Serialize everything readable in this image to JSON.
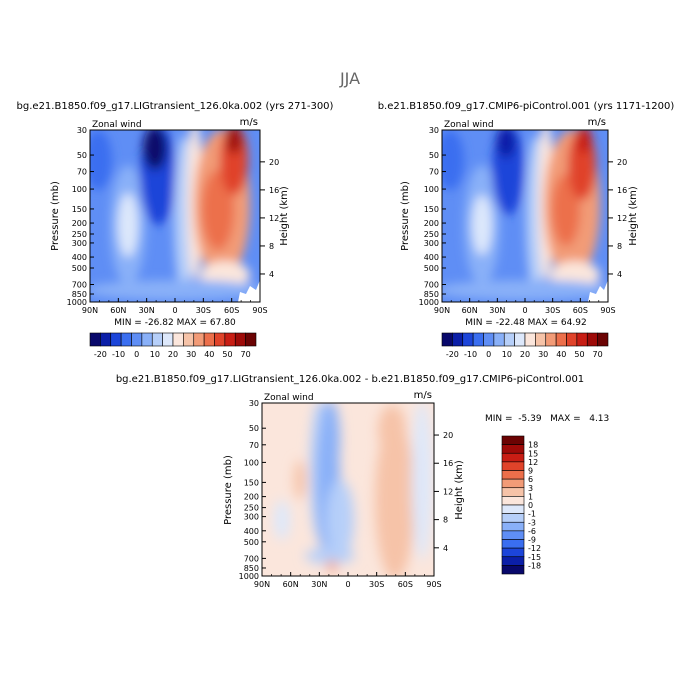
{
  "figure": {
    "title": "JJA"
  },
  "chart_data": [
    {
      "type": "heatmap",
      "title": "bg.e21.B1850.f09_g17.LIGtransient_126.0ka.002 (yrs 271-300)",
      "variable": "Zonal wind",
      "units": "m/s",
      "ylabel": "Pressure (mb)",
      "y2label": "Height (km)",
      "xticks": [
        "90N",
        "60N",
        "30N",
        "0",
        "30S",
        "60S",
        "90S"
      ],
      "yticks": [
        "30",
        "50",
        "70",
        "100",
        "150",
        "200",
        "250",
        "300",
        "400",
        "500",
        "700",
        "850",
        "1000"
      ],
      "y2ticks": [
        "20",
        "16",
        "12",
        "8",
        "4"
      ],
      "stats": "MIN = -26.82   MAX =  67.80",
      "colorbar_orientation": "horizontal",
      "colorbar_labels": [
        "-20",
        "-10",
        "0",
        "10",
        "20",
        "30",
        "40",
        "50",
        "70"
      ]
    },
    {
      "type": "heatmap",
      "title": "b.e21.B1850.f09_g17.CMIP6-piControl.001 (yrs 1171-1200)",
      "variable": "Zonal wind",
      "units": "m/s",
      "ylabel": "Pressure (mb)",
      "y2label": "Height (km)",
      "xticks": [
        "90N",
        "60N",
        "30N",
        "0",
        "30S",
        "60S",
        "90S"
      ],
      "yticks": [
        "30",
        "50",
        "70",
        "100",
        "150",
        "200",
        "250",
        "300",
        "400",
        "500",
        "700",
        "850",
        "1000"
      ],
      "y2ticks": [
        "20",
        "16",
        "12",
        "8",
        "4"
      ],
      "stats": "MIN = -22.48   MAX =  64.92",
      "colorbar_orientation": "horizontal",
      "colorbar_labels": [
        "-20",
        "-10",
        "0",
        "10",
        "20",
        "30",
        "40",
        "50",
        "70"
      ]
    },
    {
      "type": "heatmap",
      "title": "bg.e21.B1850.f09_g17.LIGtransient_126.0ka.002 - b.e21.B1850.f09_g17.CMIP6-piControl.001",
      "variable": "Zonal wind",
      "units": "m/s",
      "ylabel": "Pressure (mb)",
      "y2label": "Height (km)",
      "xticks": [
        "90N",
        "60N",
        "30N",
        "0",
        "30S",
        "60S",
        "90S"
      ],
      "yticks": [
        "30",
        "50",
        "70",
        "100",
        "150",
        "200",
        "250",
        "300",
        "400",
        "500",
        "700",
        "850",
        "1000"
      ],
      "y2ticks": [
        "20",
        "16",
        "12",
        "8",
        "4"
      ],
      "stats": "MIN =  -5.39   MAX =   4.13",
      "colorbar_orientation": "vertical",
      "colorbar_labels": [
        "18",
        "15",
        "12",
        "9",
        "6",
        "3",
        "1",
        "0",
        "-1",
        "-3",
        "-6",
        "-9",
        "-12",
        "-15",
        "-18"
      ]
    }
  ],
  "palettes": {
    "absolute": [
      "#08086b",
      "#0b1fa8",
      "#1c45d9",
      "#3a6ef0",
      "#5f8ef5",
      "#89b0f8",
      "#b6cff9",
      "#dde8fb",
      "#fbe6dc",
      "#f6c3a8",
      "#f29b77",
      "#ec6f4b",
      "#e0432a",
      "#c81d14",
      "#9e0a08",
      "#6b0303"
    ],
    "difference": [
      "#6b0303",
      "#9e0a08",
      "#c81d14",
      "#e0432a",
      "#ec6f4b",
      "#f29b77",
      "#f6c3a8",
      "#fbe6dc",
      "#dde8fb",
      "#b6cff9",
      "#89b0f8",
      "#5f8ef5",
      "#3a6ef0",
      "#1c45d9",
      "#0b1fa8",
      "#08086b"
    ]
  }
}
